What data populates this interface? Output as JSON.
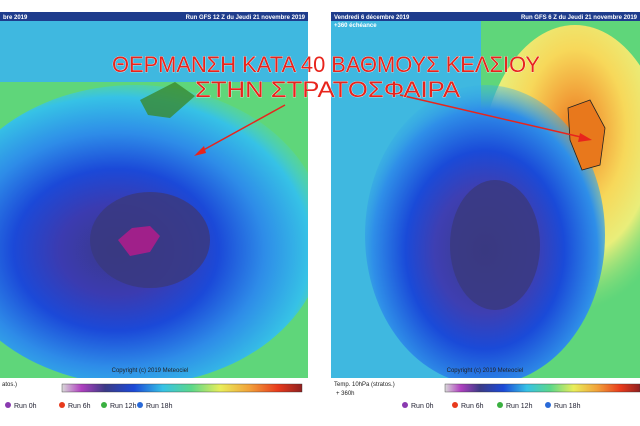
{
  "panels": [
    {
      "date": "bre 2019",
      "run": "Run GFS 12 Z du Jeudi 21 novembre 2019",
      "legend_title": "atos.)",
      "copyright": "Copyright (c) 2019 Meteociel",
      "runs": [
        "Run 0h",
        "Run 6h",
        "Run 12h",
        "Run 18h"
      ]
    },
    {
      "date": "Vendredi 6 décembre 2019",
      "lead": "+360 échéance",
      "run": "Run GFS 6 Z du Jeudi 21 novembre 2019",
      "legend_title": "Temp. 10hPa (stratos.)",
      "legend_sub": "+ 360h",
      "copyright": "Copyright (c) 2019 Meteociel",
      "runs": [
        "Run 0h",
        "Run 6h",
        "Run 12h",
        "Run 18h"
      ]
    }
  ],
  "headline": [
    "ΘΕΡΜΑΝΣΗ ΚΑΤΑ 40 ΒΑΘΜΟΥΣ ΚΕΛΣΙΟΥ",
    "ΣΤΗΝ ΣΤΡΑΤΟΣΦΑΙΡΑ"
  ]
}
